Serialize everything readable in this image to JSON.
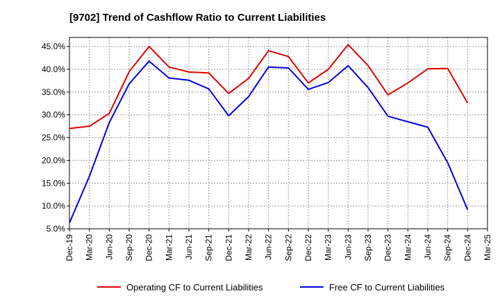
{
  "chart_data": {
    "type": "line",
    "title": "[9702]  Trend of Cashflow Ratio to Current Liabilities",
    "xlabel": "",
    "ylabel": "",
    "categories": [
      "Dec-19",
      "Mar-20",
      "Jun-20",
      "Sep-20",
      "Dec-20",
      "Mar-21",
      "Jun-21",
      "Sep-21",
      "Dec-21",
      "Mar-22",
      "Jun-22",
      "Sep-22",
      "Dec-22",
      "Mar-23",
      "Jun-23",
      "Sep-23",
      "Dec-23",
      "Mar-24",
      "Jun-24",
      "Sep-24",
      "Dec-24",
      "Mar-25"
    ],
    "ylim": [
      5.0,
      47.0
    ],
    "yticks": [
      5.0,
      10.0,
      15.0,
      20.0,
      25.0,
      30.0,
      35.0,
      40.0,
      45.0
    ],
    "ytick_labels": [
      "5.0%",
      "10.0%",
      "15.0%",
      "20.0%",
      "25.0%",
      "30.0%",
      "35.0%",
      "40.0%",
      "45.0%"
    ],
    "grid": true,
    "legend_position": "bottom",
    "series": [
      {
        "name": "Operating CF to Current Liabilities",
        "color": "#e00000",
        "values": [
          27.0,
          27.5,
          30.3,
          39.5,
          45.0,
          40.5,
          39.4,
          39.2,
          34.7,
          38.0,
          44.1,
          42.8,
          37.0,
          40.0,
          45.4,
          40.8,
          34.4,
          37.0,
          40.1,
          40.2,
          32.6,
          null
        ]
      },
      {
        "name": "Free CF to Current Liabilities",
        "color": "#0000e0",
        "values": [
          6.3,
          16.5,
          28.3,
          36.8,
          41.8,
          38.1,
          37.6,
          35.7,
          29.8,
          34.0,
          40.5,
          40.3,
          35.6,
          37.1,
          40.8,
          36.0,
          29.7,
          28.5,
          27.3,
          19.5,
          9.2,
          null
        ]
      }
    ]
  }
}
